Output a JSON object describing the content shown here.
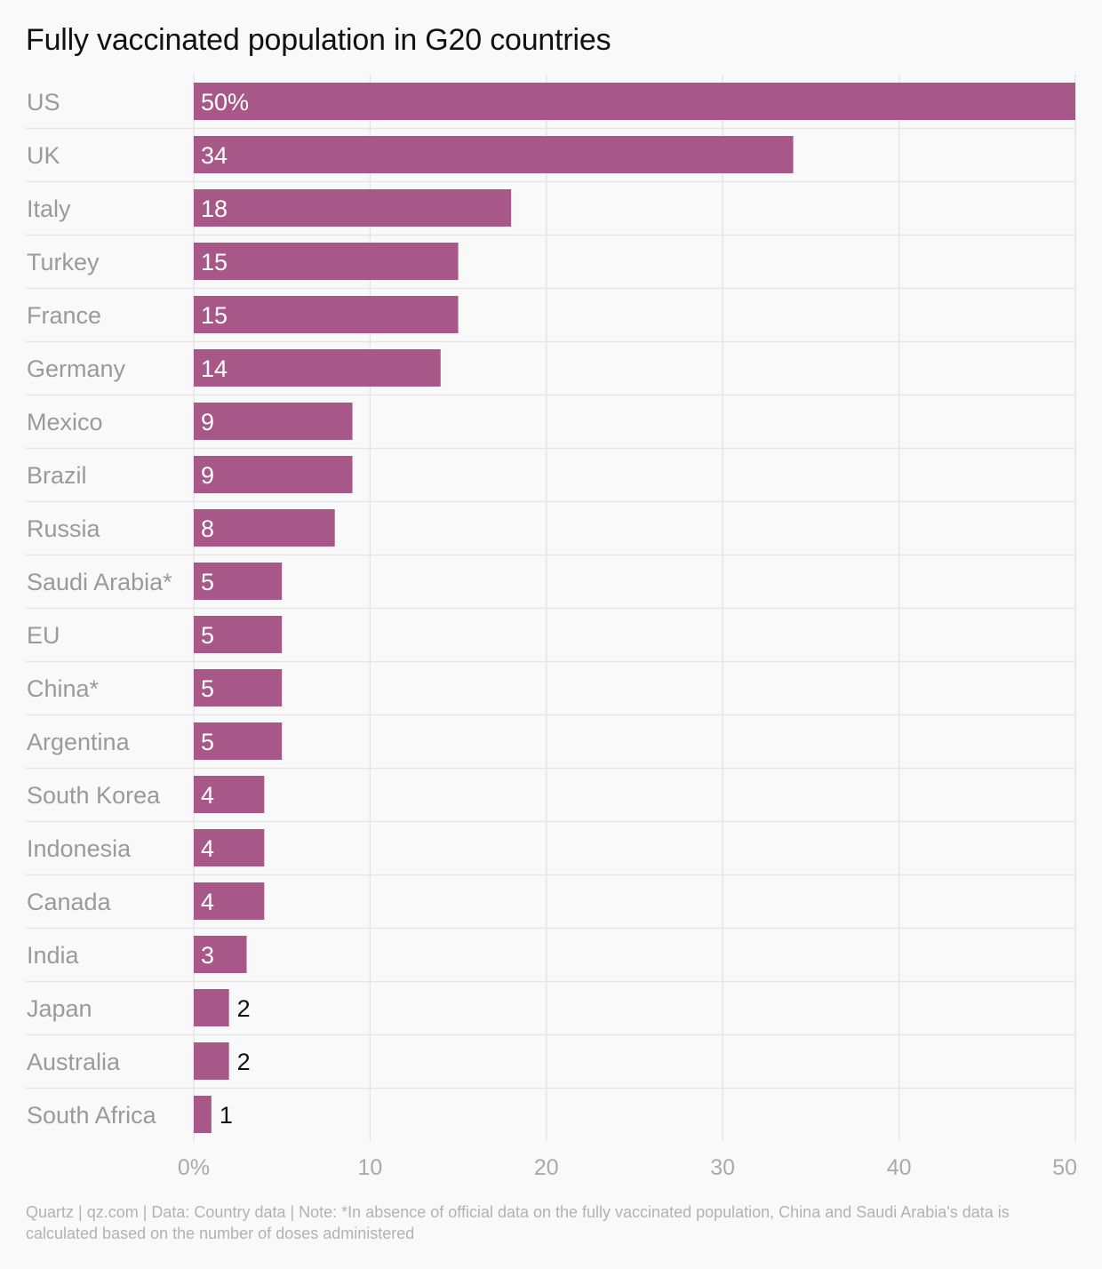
{
  "chart_data": {
    "type": "bar",
    "orientation": "horizontal",
    "title": "Fully vaccinated population in G20 countries",
    "categories": [
      "US",
      "UK",
      "Italy",
      "Turkey",
      "France",
      "Germany",
      "Mexico",
      "Brazil",
      "Russia",
      "Saudi Arabia*",
      "EU",
      "China*",
      "Argentina",
      "South Korea",
      "Indonesia",
      "Canada",
      "India",
      "Japan",
      "Australia",
      "South Africa"
    ],
    "values": [
      50,
      34,
      18,
      15,
      15,
      14,
      9,
      9,
      8,
      5,
      5,
      5,
      5,
      4,
      4,
      4,
      3,
      2,
      2,
      1
    ],
    "data_labels": [
      "50%",
      "34",
      "18",
      "15",
      "15",
      "14",
      "9",
      "9",
      "8",
      "5",
      "5",
      "5",
      "5",
      "4",
      "4",
      "4",
      "3",
      "2",
      "2",
      "1"
    ],
    "xlim": [
      0,
      50
    ],
    "x_ticks": [
      0,
      10,
      20,
      30,
      40,
      50
    ],
    "x_tick_labels": [
      "0%",
      "10",
      "20",
      "30",
      "40",
      "50"
    ],
    "grid": true,
    "colors": {
      "bar": "#a85888",
      "grid": "#e6e6e6",
      "category_label": "#9a9a9a",
      "tick_label": "#aaaaaa",
      "label_inside": "#ffffff",
      "label_outside": "#111111"
    }
  },
  "source": "Quartz | qz.com | Data: Country data | Note: *In absence of official data on the fully vaccinated population, China and Saudi Arabia's data is calculated based on the number of doses administered"
}
